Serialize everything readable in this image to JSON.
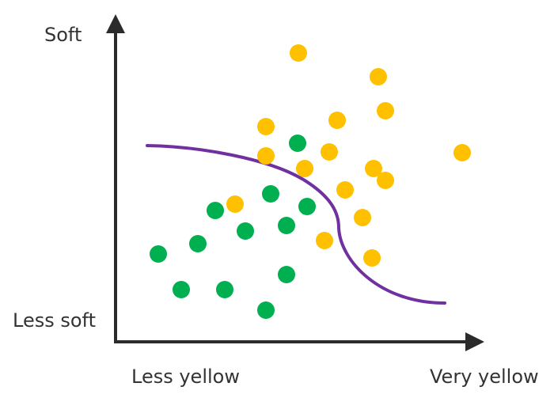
{
  "labels": {
    "y_top": "Soft",
    "y_bottom": "Less soft",
    "x_left": "Less yellow",
    "x_right": "Very yellow"
  },
  "colors": {
    "axis": "#2b2b2b",
    "green_points": "#00b050",
    "yellow_points": "#ffc000",
    "boundary": "#7030a0"
  }
}
